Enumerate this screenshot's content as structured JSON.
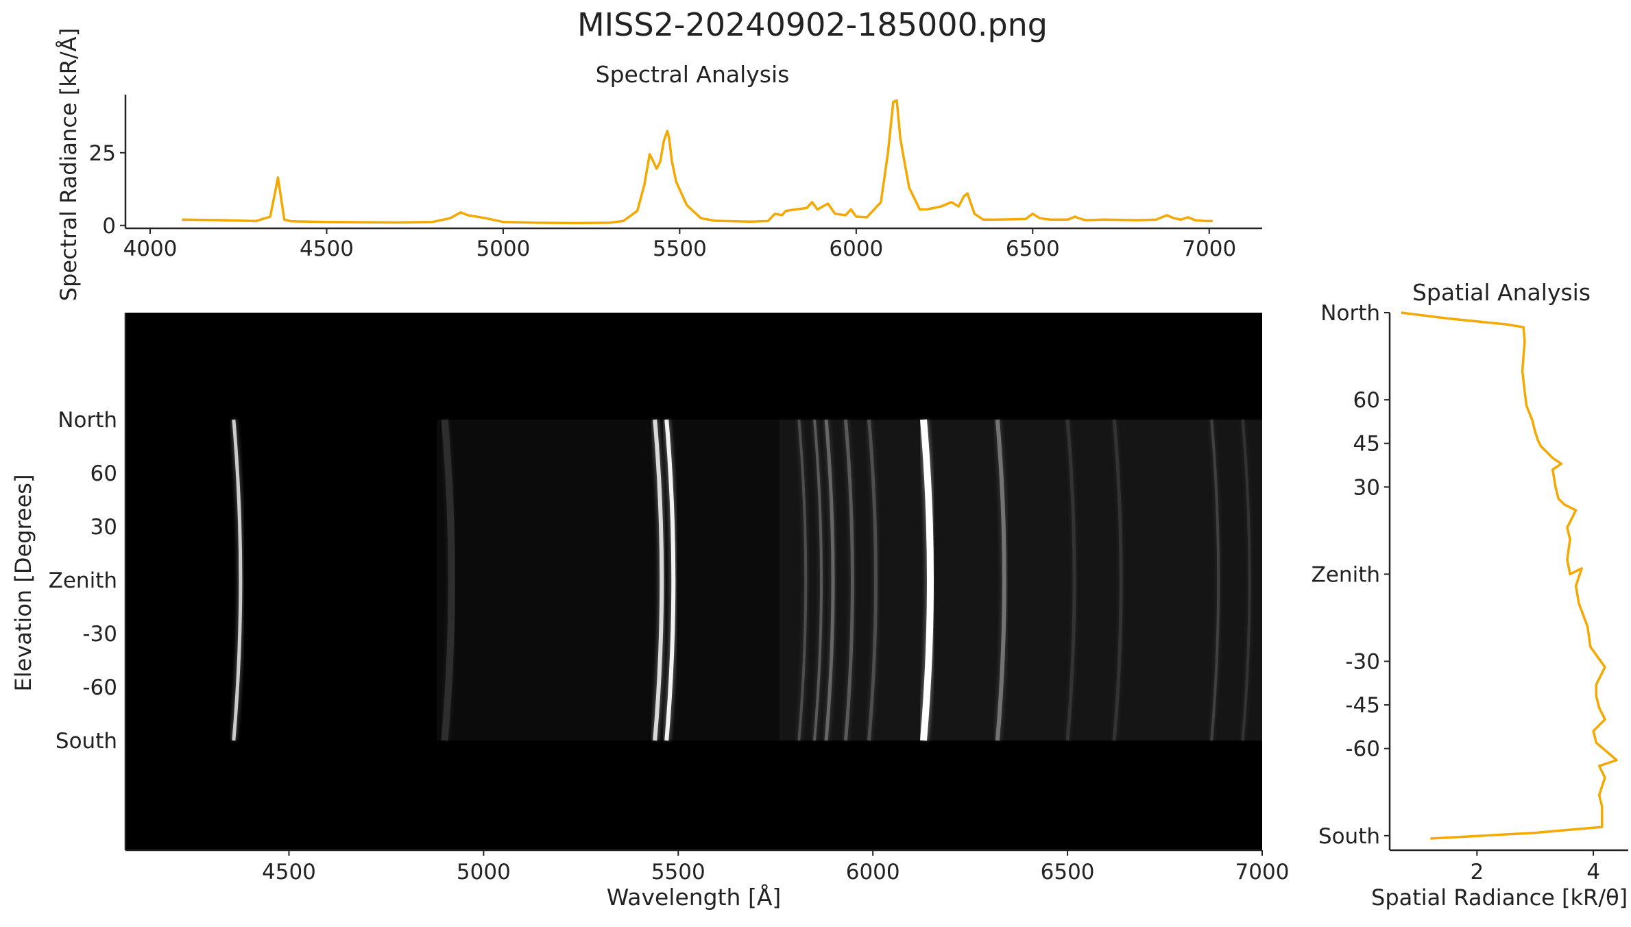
{
  "figure_title": "MISS2-20240902-185000.png",
  "colors": {
    "curve": "#f5a800",
    "axis": "#222222",
    "image_bg": "#000000"
  },
  "chart_data": [
    {
      "id": "spectral",
      "type": "line",
      "title": "Spectral Analysis",
      "xlabel": "",
      "ylabel": "Spectral Radiance [kR/Å]",
      "xlim": [
        3930,
        7150
      ],
      "ylim": [
        -1,
        45
      ],
      "xticks": [
        4000,
        4500,
        5000,
        5500,
        6000,
        6500,
        7000
      ],
      "yticks": [
        0,
        25
      ],
      "x": [
        4090,
        4200,
        4300,
        4340,
        4355,
        4362,
        4370,
        4380,
        4400,
        4500,
        4600,
        4700,
        4800,
        4850,
        4880,
        4900,
        4950,
        5000,
        5100,
        5200,
        5300,
        5340,
        5380,
        5400,
        5415,
        5425,
        5435,
        5445,
        5455,
        5465,
        5470,
        5478,
        5490,
        5520,
        5560,
        5600,
        5700,
        5750,
        5770,
        5790,
        5800,
        5830,
        5860,
        5875,
        5890,
        5920,
        5940,
        5970,
        5985,
        6000,
        6030,
        6070,
        6090,
        6105,
        6115,
        6125,
        6135,
        6150,
        6180,
        6200,
        6240,
        6270,
        6290,
        6305,
        6315,
        6335,
        6360,
        6400,
        6480,
        6500,
        6520,
        6550,
        6600,
        6620,
        6630,
        6650,
        6700,
        6800,
        6850,
        6880,
        6900,
        6920,
        6940,
        6960,
        6990,
        7010
      ],
      "y": [
        2.0,
        1.8,
        1.5,
        3.0,
        12.0,
        16.5,
        10.0,
        2.0,
        1.4,
        1.2,
        1.1,
        1.0,
        1.2,
        2.5,
        4.5,
        3.5,
        2.5,
        1.2,
        0.9,
        0.8,
        0.9,
        1.5,
        5.0,
        14.0,
        24.5,
        22.0,
        19.5,
        22.0,
        29.0,
        32.5,
        30.0,
        22.0,
        15.0,
        7.0,
        2.5,
        1.6,
        1.3,
        1.5,
        4.0,
        3.5,
        5.0,
        5.5,
        6.0,
        8.0,
        5.5,
        7.5,
        4.0,
        3.5,
        5.5,
        3.0,
        2.8,
        8.0,
        25.0,
        42.5,
        43.0,
        30.0,
        23.0,
        13.0,
        5.5,
        5.5,
        6.5,
        8.0,
        6.5,
        10.0,
        11.0,
        4.0,
        2.0,
        2.0,
        2.2,
        4.0,
        2.5,
        2.0,
        2.0,
        3.0,
        2.5,
        1.8,
        2.0,
        1.8,
        2.0,
        3.5,
        2.5,
        2.0,
        2.8,
        1.8,
        1.5,
        1.5
      ]
    },
    {
      "id": "image",
      "type": "heatmap",
      "xlabel": "Wavelength [Å]",
      "ylabel": "Elevation [Degrees]",
      "xlim": [
        4080,
        7000
      ],
      "xticks": [
        4500,
        5000,
        5500,
        6000,
        6500,
        7000
      ],
      "yticklabels": [
        "North",
        "60",
        "30",
        "Zenith",
        "-30",
        "-60",
        "South"
      ],
      "lines": [
        {
          "wavelength": 4358,
          "intensity": 0.8,
          "width": 5
        },
        {
          "wavelength": 4900,
          "intensity": 0.18,
          "width": 10
        },
        {
          "wavelength": 5440,
          "intensity": 0.85,
          "width": 6
        },
        {
          "wavelength": 5470,
          "intensity": 0.95,
          "width": 6
        },
        {
          "wavelength": 5810,
          "intensity": 0.3,
          "width": 4
        },
        {
          "wavelength": 5850,
          "intensity": 0.35,
          "width": 4
        },
        {
          "wavelength": 5880,
          "intensity": 0.4,
          "width": 5
        },
        {
          "wavelength": 5930,
          "intensity": 0.35,
          "width": 5
        },
        {
          "wavelength": 5990,
          "intensity": 0.3,
          "width": 5
        },
        {
          "wavelength": 6130,
          "intensity": 1.0,
          "width": 10
        },
        {
          "wavelength": 6320,
          "intensity": 0.45,
          "width": 6
        },
        {
          "wavelength": 6500,
          "intensity": 0.2,
          "width": 5
        },
        {
          "wavelength": 6620,
          "intensity": 0.2,
          "width": 5
        },
        {
          "wavelength": 6870,
          "intensity": 0.25,
          "width": 4
        },
        {
          "wavelength": 6950,
          "intensity": 0.2,
          "width": 4
        }
      ]
    },
    {
      "id": "spatial",
      "type": "line",
      "title": "Spatial Analysis",
      "xlabel": "Spatial Radiance [kR/θ]",
      "ylabel": "",
      "xlim": [
        0.5,
        4.6
      ],
      "ylim": [
        -95,
        90
      ],
      "xticks": [
        2,
        4
      ],
      "yticks": [
        90,
        60,
        45,
        30,
        0,
        -30,
        -45,
        -60,
        -90
      ],
      "yticklabels": [
        "North",
        "60",
        "45",
        "30",
        "Zenith",
        "-30",
        "-45",
        "-60",
        "South"
      ],
      "x": [
        0.7,
        1.5,
        2.5,
        2.8,
        2.82,
        2.78,
        2.82,
        2.85,
        2.95,
        3.0,
        3.05,
        3.1,
        3.2,
        3.3,
        3.45,
        3.3,
        3.35,
        3.4,
        3.5,
        3.7,
        3.55,
        3.6,
        3.55,
        3.6,
        3.8,
        3.7,
        3.75,
        3.9,
        3.95,
        4.2,
        4.05,
        4.05,
        4.1,
        4.2,
        4.0,
        4.05,
        4.4,
        4.1,
        4.2,
        4.1,
        4.15,
        4.15,
        3.0,
        1.2
      ],
      "y": [
        90,
        88,
        86,
        85,
        80,
        70,
        63,
        58,
        53,
        49,
        46,
        44,
        42,
        40,
        38,
        36,
        30,
        26,
        24,
        22,
        16,
        12,
        5,
        0,
        2,
        -4,
        -10,
        -18,
        -25,
        -32,
        -38,
        -42,
        -46,
        -50,
        -54,
        -58,
        -64,
        -66,
        -70,
        -76,
        -80,
        -87,
        -89,
        -91
      ]
    }
  ]
}
